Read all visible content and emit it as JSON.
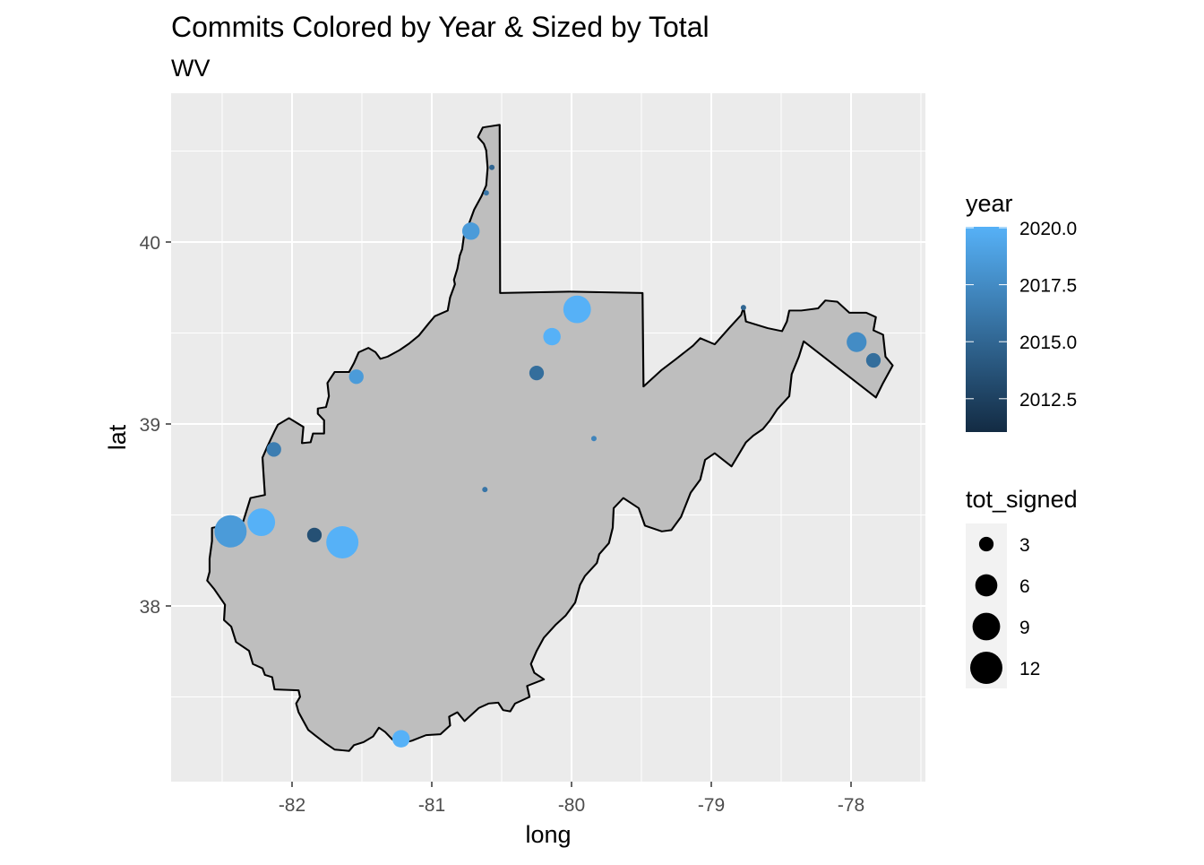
{
  "chart_data": {
    "type": "scatter",
    "title": "Commits Colored by Year & Sized by Total",
    "subtitle": "WV",
    "xlabel": "long",
    "ylabel": "lat",
    "xlim": [
      -82.86,
      -77.46
    ],
    "ylim": [
      37.06,
      40.82
    ],
    "x_ticks": [
      -82,
      -81,
      -80,
      -79,
      -78
    ],
    "x_tick_labels": [
      "-82",
      "-81",
      "-80",
      "-79",
      "-78"
    ],
    "y_ticks": [
      38,
      39,
      40
    ],
    "y_tick_labels": [
      "38",
      "39",
      "40"
    ],
    "grid": true,
    "background_shape": "West Virginia state outline",
    "fill_color": "#BEBEBE",
    "color_scale": {
      "title": "year",
      "low": "#132B43",
      "high": "#56B1F7",
      "range": [
        2011.05,
        2020
      ],
      "breaks": [
        2020.0,
        2017.5,
        2015.0,
        2012.5
      ],
      "labels": [
        "2020.0",
        "2017.5",
        "2015.0",
        "2012.5"
      ]
    },
    "size_scale": {
      "title": "tot_signed",
      "breaks": [
        3,
        6,
        9,
        12
      ],
      "labels": [
        "3",
        "6",
        "9",
        "12"
      ]
    },
    "legend_position": "right",
    "points": [
      {
        "long": -80.57,
        "lat": 40.41,
        "year": 2015.0,
        "tot_signed": 1
      },
      {
        "long": -80.61,
        "lat": 40.27,
        "year": 2016.0,
        "tot_signed": 1
      },
      {
        "long": -80.72,
        "lat": 40.06,
        "year": 2018.5,
        "tot_signed": 4
      },
      {
        "long": -79.96,
        "lat": 39.63,
        "year": 2020.0,
        "tot_signed": 9
      },
      {
        "long": -80.14,
        "lat": 39.48,
        "year": 2020.0,
        "tot_signed": 4
      },
      {
        "long": -80.25,
        "lat": 39.28,
        "year": 2015.5,
        "tot_signed": 3
      },
      {
        "long": -81.54,
        "lat": 39.26,
        "year": 2018.5,
        "tot_signed": 3
      },
      {
        "long": -82.13,
        "lat": 38.86,
        "year": 2016.5,
        "tot_signed": 3
      },
      {
        "long": -79.84,
        "lat": 38.92,
        "year": 2017.0,
        "tot_signed": 1
      },
      {
        "long": -80.62,
        "lat": 38.64,
        "year": 2016.0,
        "tot_signed": 1
      },
      {
        "long": -82.44,
        "lat": 38.41,
        "year": 2018.5,
        "tot_signed": 12
      },
      {
        "long": -82.22,
        "lat": 38.46,
        "year": 2020.0,
        "tot_signed": 9
      },
      {
        "long": -81.84,
        "lat": 38.39,
        "year": 2013.5,
        "tot_signed": 3
      },
      {
        "long": -81.64,
        "lat": 38.35,
        "year": 2020.0,
        "tot_signed": 12
      },
      {
        "long": -81.22,
        "lat": 37.27,
        "year": 2020.0,
        "tot_signed": 4
      },
      {
        "long": -78.77,
        "lat": 39.64,
        "year": 2015.0,
        "tot_signed": 1
      },
      {
        "long": -77.96,
        "lat": 39.45,
        "year": 2017.5,
        "tot_signed": 5
      },
      {
        "long": -77.84,
        "lat": 39.35,
        "year": 2015.5,
        "tot_signed": 3
      }
    ]
  }
}
